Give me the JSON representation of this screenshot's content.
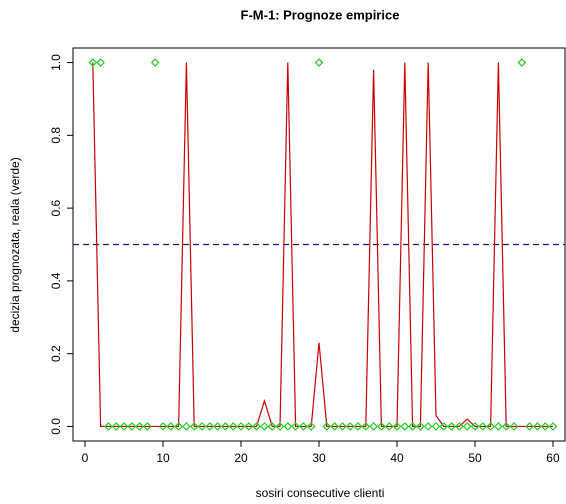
{
  "chart_data": {
    "type": "line",
    "title": "F-M-1: Prognoze empirice",
    "x_label": "sosiri consecutive clienti",
    "y_label": "decizia prognozata, reala (verde)",
    "x": [
      1,
      2,
      3,
      4,
      5,
      6,
      7,
      8,
      9,
      10,
      11,
      12,
      13,
      14,
      15,
      16,
      17,
      18,
      19,
      20,
      21,
      22,
      23,
      24,
      25,
      26,
      27,
      28,
      29,
      30,
      31,
      32,
      33,
      34,
      35,
      36,
      37,
      38,
      39,
      40,
      41,
      42,
      43,
      44,
      45,
      46,
      47,
      48,
      49,
      50,
      51,
      52,
      53,
      54,
      55,
      56,
      57,
      58,
      59,
      60
    ],
    "series": [
      {
        "color": "#cc0000",
        "style": "line",
        "values": [
          1.0,
          0,
          0,
          0,
          0,
          0,
          0,
          0,
          0,
          0,
          0,
          0,
          1.0,
          0,
          0,
          0,
          0,
          0,
          0,
          0,
          0,
          0,
          0.07,
          0,
          0,
          1.0,
          0,
          0,
          0,
          0.23,
          0,
          0,
          0,
          0,
          0,
          0,
          0.98,
          0,
          0,
          0,
          1.0,
          0,
          0,
          1.0,
          0.03,
          0,
          0,
          0,
          0.02,
          0,
          0,
          0,
          1.0,
          0,
          0,
          0,
          0,
          0,
          0,
          0
        ]
      },
      {
        "color": "#22cc22",
        "style": "points",
        "values": [
          1,
          1,
          0,
          0,
          0,
          0,
          0,
          0,
          1,
          0,
          0,
          0,
          0,
          0,
          0,
          0,
          0,
          0,
          0,
          0,
          0,
          0,
          0,
          0,
          0,
          0,
          0,
          0,
          0,
          1,
          0,
          0,
          0,
          0,
          0,
          0,
          0,
          0,
          0,
          0,
          0,
          0,
          0,
          0,
          0,
          0,
          0,
          0,
          0,
          0,
          0,
          0,
          0,
          0,
          0,
          1,
          0,
          0,
          0,
          0
        ]
      }
    ],
    "hline": {
      "value": 0.5,
      "color": "#1a1aa0"
    },
    "xlim": [
      -1.54,
      61.54
    ],
    "ylim": [
      -0.04,
      1.04
    ],
    "xticks": [
      0,
      10,
      20,
      30,
      40,
      50,
      60
    ],
    "yticks": [
      {
        "value": 0,
        "label": "0.0"
      },
      0.2,
      0.4,
      0.6,
      0.8,
      {
        "value": 1,
        "label": "1.0"
      }
    ]
  }
}
